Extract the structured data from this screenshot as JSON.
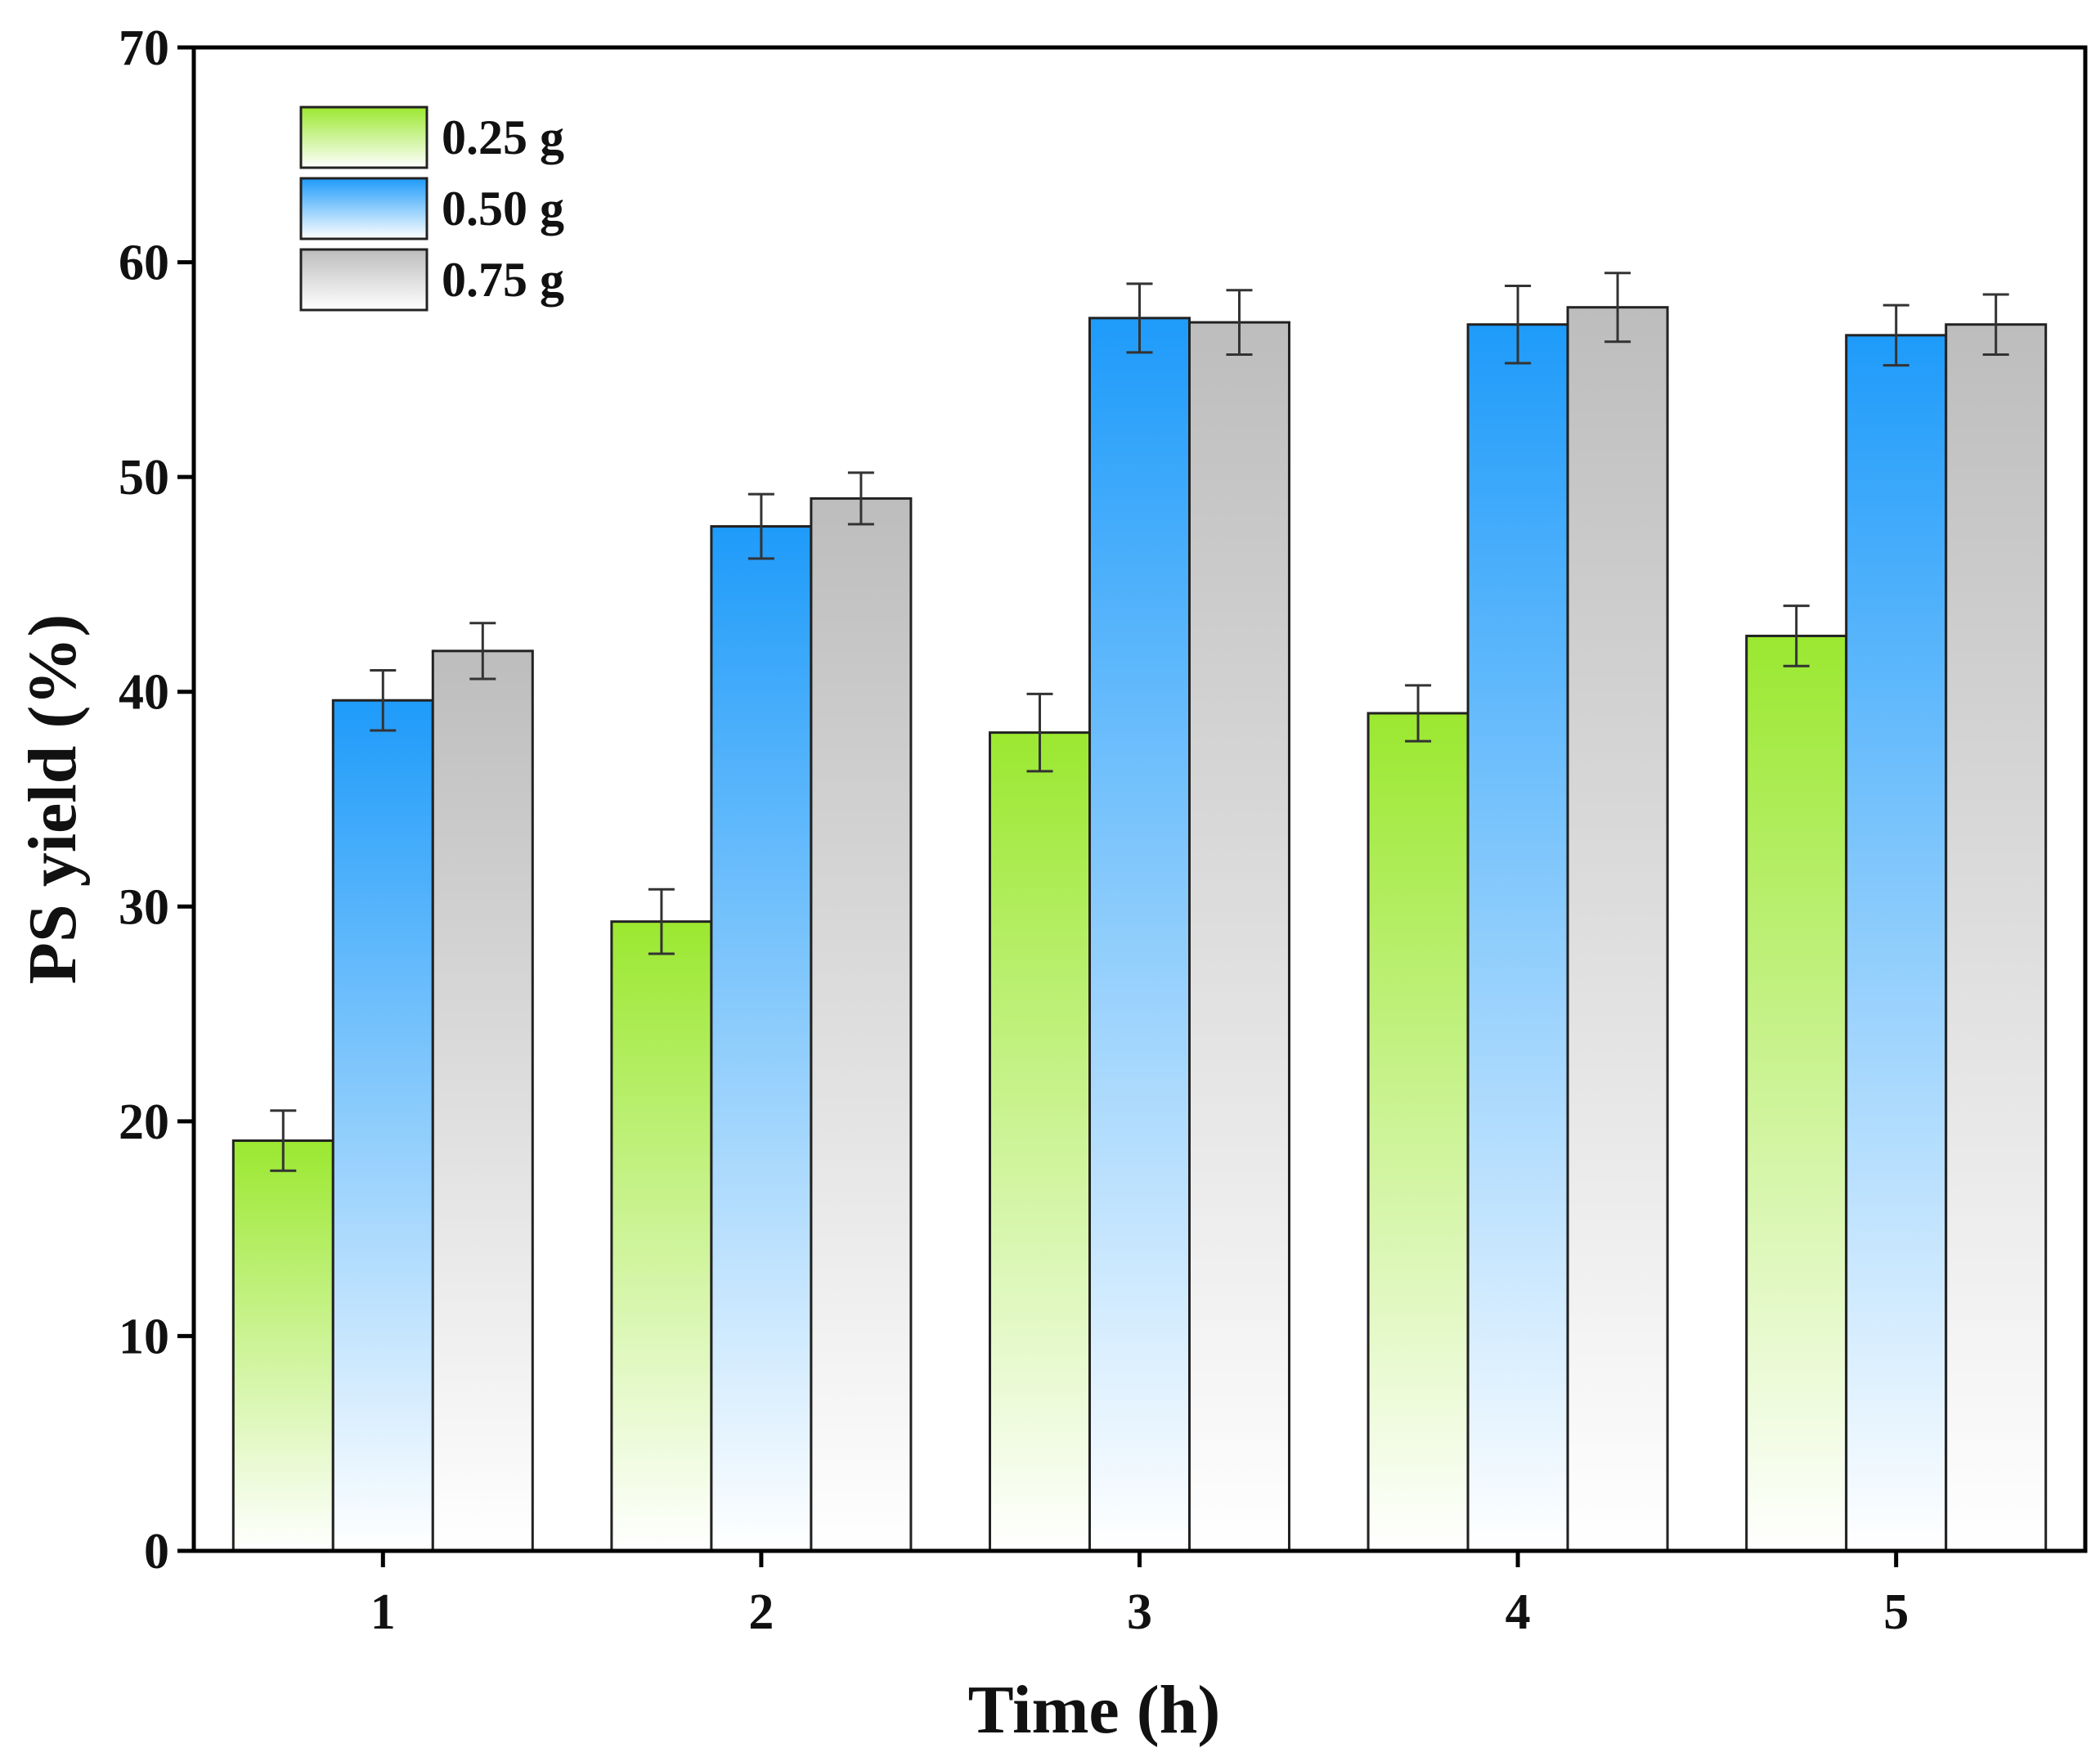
{
  "chart_data": {
    "type": "bar",
    "title": "",
    "xlabel": "Time (h)",
    "ylabel": "PS yield (%)",
    "ylim": [
      0,
      70
    ],
    "yticks": [
      0,
      10,
      20,
      30,
      40,
      50,
      60,
      70
    ],
    "categories": [
      "1",
      "2",
      "3",
      "4",
      "5"
    ],
    "legend_position": "top-left",
    "error_bars": true,
    "series": [
      {
        "name": "0.25 g",
        "color": "#9BE830",
        "values": [
          19.1,
          29.3,
          38.1,
          39.0,
          42.6
        ],
        "errors": [
          1.4,
          1.5,
          1.8,
          1.3,
          1.4
        ]
      },
      {
        "name": "0.50 g",
        "color": "#1E9BFA",
        "values": [
          39.6,
          47.7,
          57.4,
          57.1,
          56.6
        ],
        "errors": [
          1.4,
          1.5,
          1.6,
          1.8,
          1.4
        ]
      },
      {
        "name": "0.75 g",
        "color": "#BDBDBD",
        "values": [
          41.9,
          49.0,
          57.2,
          57.9,
          57.1
        ],
        "errors": [
          1.3,
          1.2,
          1.5,
          1.6,
          1.4
        ]
      }
    ]
  }
}
